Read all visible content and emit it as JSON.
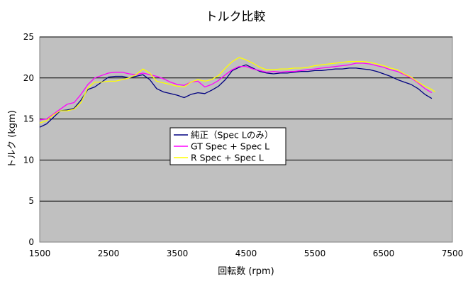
{
  "chart_data": {
    "type": "line",
    "title": "トルク比較",
    "xlabel": "回転数 (rpm)",
    "ylabel": "トルク (kgm)",
    "xlim": [
      1500,
      7500
    ],
    "ylim": [
      0,
      25
    ],
    "xticks": [
      1500,
      2500,
      3500,
      4500,
      5500,
      6500,
      7500
    ],
    "yticks": [
      0,
      5,
      10,
      15,
      20,
      25
    ],
    "grid": "horizontal",
    "legend_position": "center",
    "background": "#c0c0c0",
    "series": [
      {
        "name": "純正（Spec Lのみ）",
        "color": "#000080",
        "x": [
          1500,
          1600,
          1700,
          1800,
          1900,
          2000,
          2100,
          2200,
          2300,
          2400,
          2500,
          2600,
          2700,
          2800,
          2900,
          3000,
          3100,
          3200,
          3300,
          3400,
          3500,
          3600,
          3700,
          3800,
          3900,
          4000,
          4100,
          4200,
          4300,
          4400,
          4500,
          4600,
          4700,
          4800,
          4900,
          5000,
          5100,
          5200,
          5300,
          5400,
          5500,
          5600,
          5700,
          5800,
          5900,
          6000,
          6100,
          6200,
          6300,
          6400,
          6500,
          6600,
          6700,
          6800,
          6900,
          7000,
          7100,
          7200
        ],
        "y": [
          14.0,
          14.4,
          15.2,
          16.0,
          16.1,
          16.3,
          17.3,
          18.6,
          18.9,
          19.5,
          20.1,
          20.2,
          20.2,
          20.0,
          20.2,
          20.4,
          19.8,
          18.7,
          18.3,
          18.1,
          17.9,
          17.6,
          18.0,
          18.2,
          18.1,
          18.5,
          19.0,
          19.8,
          20.9,
          21.3,
          21.6,
          21.2,
          20.8,
          20.6,
          20.5,
          20.6,
          20.6,
          20.7,
          20.8,
          20.8,
          20.9,
          20.9,
          21.0,
          21.1,
          21.1,
          21.2,
          21.2,
          21.1,
          21.0,
          20.8,
          20.5,
          20.2,
          19.8,
          19.5,
          19.2,
          18.7,
          18.0,
          17.5
        ]
      },
      {
        "name": "GT Spec + Spec L",
        "color": "#ff00ff",
        "x": [
          1500,
          1600,
          1700,
          1800,
          1900,
          2000,
          2100,
          2200,
          2300,
          2400,
          2500,
          2600,
          2700,
          2800,
          2900,
          3000,
          3100,
          3200,
          3300,
          3400,
          3500,
          3600,
          3700,
          3800,
          3900,
          4000,
          4100,
          4200,
          4300,
          4400,
          4500,
          4600,
          4700,
          4800,
          4900,
          5000,
          5100,
          5200,
          5300,
          5400,
          5500,
          5600,
          5700,
          5800,
          5900,
          6000,
          6100,
          6200,
          6300,
          6400,
          6500,
          6600,
          6700,
          6800,
          6900,
          7000,
          7100,
          7200
        ],
        "y": [
          14.9,
          15.0,
          15.6,
          16.2,
          16.8,
          17.0,
          18.0,
          19.2,
          20.0,
          20.3,
          20.6,
          20.7,
          20.7,
          20.5,
          20.4,
          20.6,
          20.4,
          20.2,
          19.9,
          19.5,
          19.2,
          19.1,
          19.5,
          19.6,
          18.9,
          19.2,
          19.7,
          20.4,
          21.0,
          21.4,
          21.4,
          21.1,
          20.9,
          20.7,
          20.8,
          20.7,
          20.8,
          20.8,
          20.9,
          21.0,
          21.1,
          21.2,
          21.3,
          21.4,
          21.5,
          21.6,
          21.8,
          21.8,
          21.7,
          21.5,
          21.3,
          21.0,
          20.8,
          20.4,
          20.0,
          19.4,
          18.7,
          18.2
        ]
      },
      {
        "name": "R Spec + Spec L",
        "color": "#ffff00",
        "x": [
          1500,
          1600,
          1700,
          1800,
          1900,
          2000,
          2100,
          2200,
          2300,
          2400,
          2500,
          2600,
          2700,
          2800,
          2900,
          3000,
          3100,
          3200,
          3300,
          3400,
          3500,
          3600,
          3700,
          3800,
          3900,
          4000,
          4100,
          4200,
          4300,
          4400,
          4500,
          4600,
          4700,
          4800,
          4900,
          5000,
          5100,
          5200,
          5300,
          5400,
          5500,
          5600,
          5700,
          5800,
          5900,
          6000,
          6100,
          6200,
          6300,
          6400,
          6500,
          6600,
          6700,
          6800,
          6900,
          7000,
          7100,
          7200,
          7250
        ],
        "y": [
          14.5,
          14.8,
          15.5,
          16.0,
          16.0,
          16.2,
          17.0,
          18.8,
          19.5,
          19.5,
          19.6,
          19.6,
          19.8,
          20.0,
          20.4,
          21.1,
          20.6,
          19.6,
          19.4,
          19.2,
          19.0,
          18.9,
          19.5,
          19.8,
          19.6,
          19.8,
          20.3,
          21.2,
          22.0,
          22.5,
          22.2,
          21.8,
          21.3,
          21.0,
          21.0,
          21.1,
          21.1,
          21.2,
          21.2,
          21.3,
          21.5,
          21.6,
          21.7,
          21.8,
          21.9,
          22.0,
          22.0,
          22.0,
          21.9,
          21.7,
          21.5,
          21.2,
          21.0,
          20.5,
          20.1,
          19.5,
          19.0,
          18.6,
          18.3
        ]
      }
    ]
  }
}
